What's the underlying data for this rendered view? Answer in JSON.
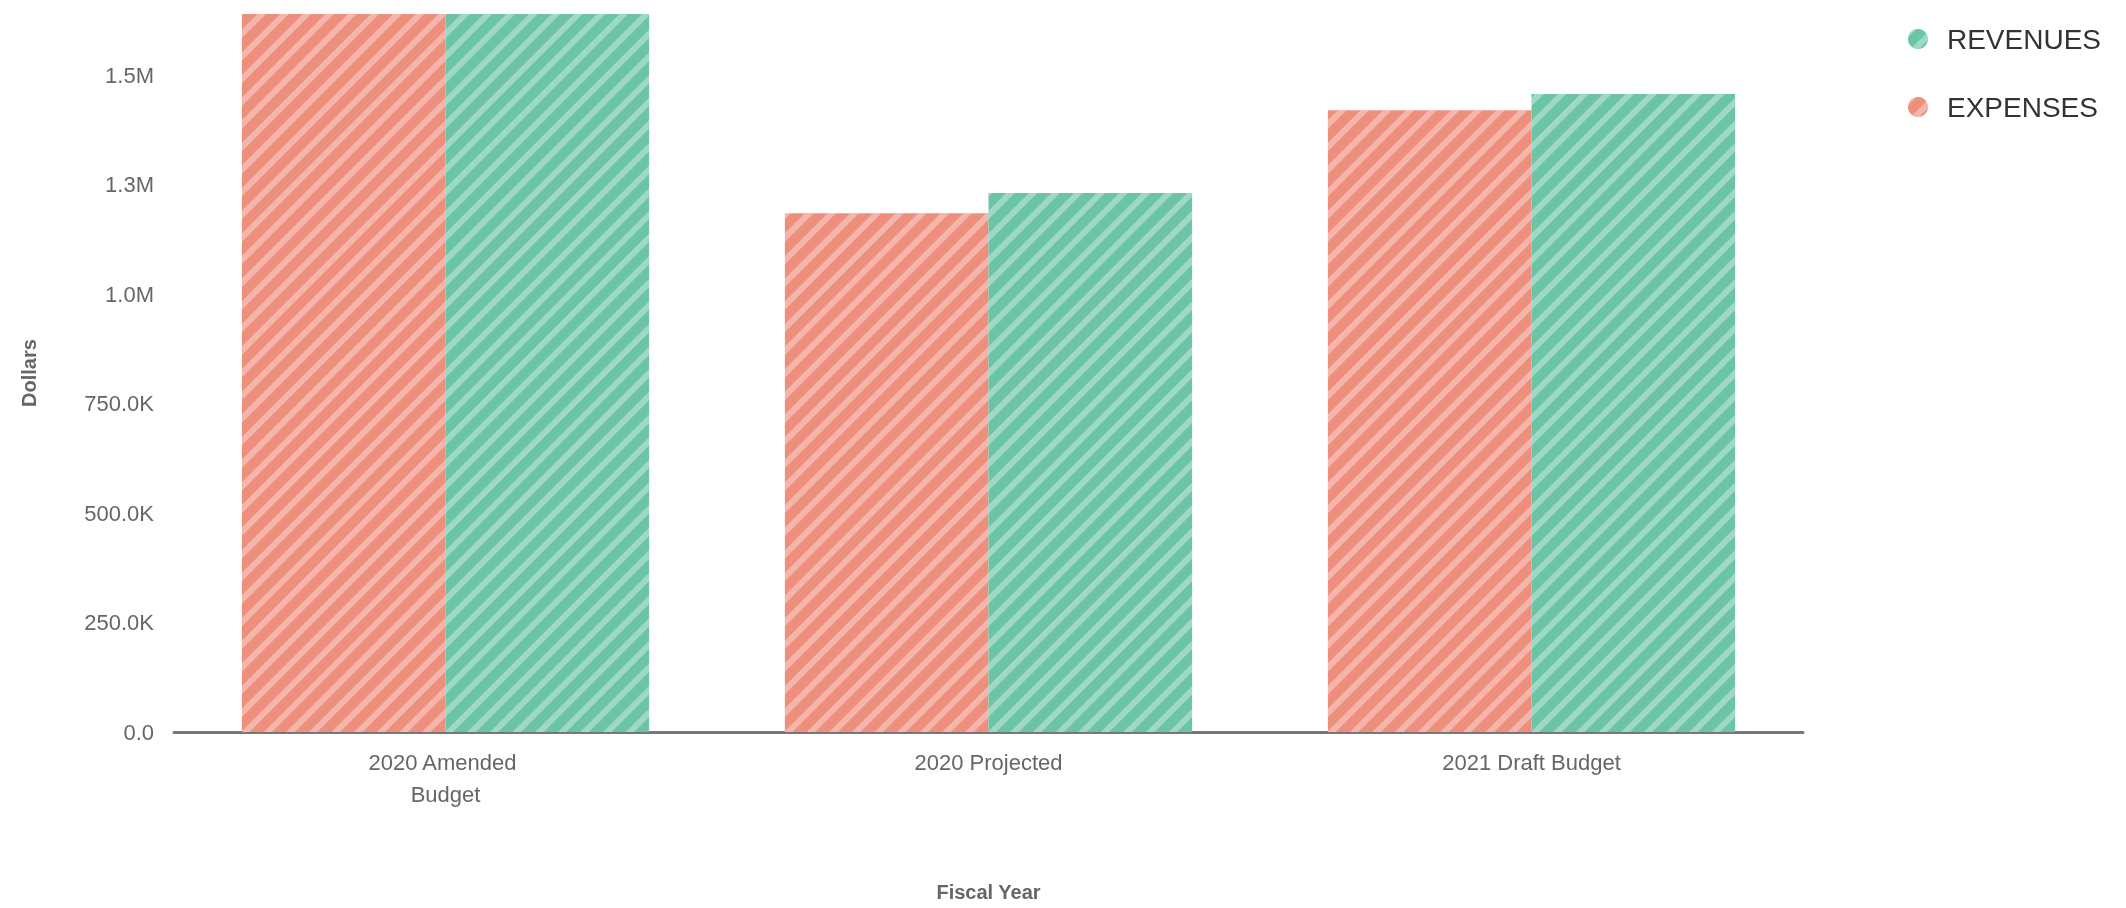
{
  "chart_data": {
    "type": "bar",
    "xlabel": "Fiscal Year",
    "ylabel": "Dollars",
    "categories": [
      "2020 Amended Budget",
      "2020 Projected",
      "2021 Draft Budget"
    ],
    "series": [
      {
        "name": "EXPENSES",
        "color": "#ee8f7d",
        "values": [
          1640000,
          1185000,
          1420000
        ]
      },
      {
        "name": "REVENUES",
        "color": "#6cc4a6",
        "values": [
          1640000,
          1231000,
          1457000
        ]
      }
    ],
    "ylim": [
      0,
      1640000
    ],
    "yticks": [
      {
        "value": 0,
        "label": "0.0"
      },
      {
        "value": 250000,
        "label": "250.0K"
      },
      {
        "value": 500000,
        "label": "500.0K"
      },
      {
        "value": 750000,
        "label": "750.0K"
      },
      {
        "value": 1000000,
        "label": "1.0M"
      },
      {
        "value": 1250000,
        "label": "1.3M"
      },
      {
        "value": 1500000,
        "label": "1.5M"
      }
    ],
    "grid": false,
    "legend": "top right"
  }
}
